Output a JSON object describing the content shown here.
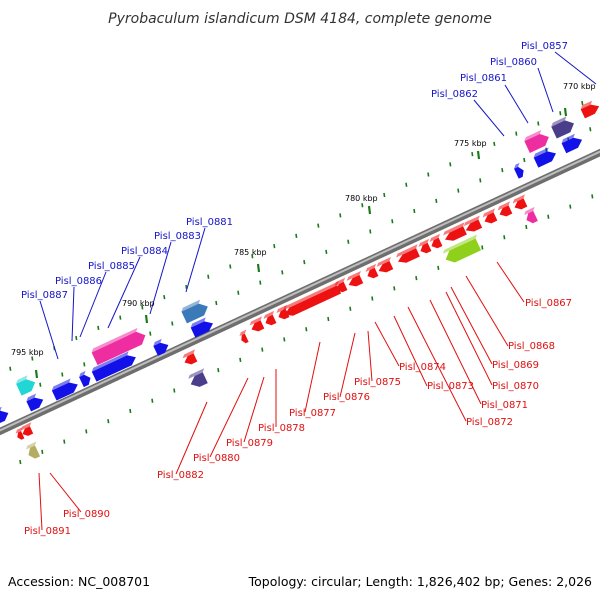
{
  "title": "Pyrobaculum islandicum DSM 4184, complete genome",
  "footer": {
    "accession": "Accession: NC_008701",
    "summary": "Topology: circular; Length: 1,826,402 bp; Genes: 2,026"
  },
  "colors": {
    "upper_strand_label": "#1414c8",
    "lower_strand_label": "#e01010",
    "backbone": "#8a8a8a",
    "tick": "#1a7a1a"
  },
  "scale_ticks": [
    {
      "label": "770 kbp"
    },
    {
      "label": "775 kbp"
    },
    {
      "label": "780 kbp"
    },
    {
      "label": "785 kbp"
    },
    {
      "label": "790 kbp"
    },
    {
      "label": "795 kbp"
    }
  ],
  "gene_labels_upper": [
    {
      "label": "Pisl_0857"
    },
    {
      "label": "Pisl_0860"
    },
    {
      "label": "Pisl_0861"
    },
    {
      "label": "Pisl_0862"
    },
    {
      "label": "Pisl_0881"
    },
    {
      "label": "Pisl_0883"
    },
    {
      "label": "Pisl_0884"
    },
    {
      "label": "Pisl_0885"
    },
    {
      "label": "Pisl_0886"
    },
    {
      "label": "Pisl_0887"
    }
  ],
  "gene_labels_lower": [
    {
      "label": "Pisl_0867"
    },
    {
      "label": "Pisl_0868"
    },
    {
      "label": "Pisl_0869"
    },
    {
      "label": "Pisl_0870"
    },
    {
      "label": "Pisl_0871"
    },
    {
      "label": "Pisl_0872"
    },
    {
      "label": "Pisl_0873"
    },
    {
      "label": "Pisl_0874"
    },
    {
      "label": "Pisl_0875"
    },
    {
      "label": "Pisl_0876"
    },
    {
      "label": "Pisl_0877"
    },
    {
      "label": "Pisl_0878"
    },
    {
      "label": "Pisl_0879"
    },
    {
      "label": "Pisl_0880"
    },
    {
      "label": "Pisl_0882"
    },
    {
      "label": "Pisl_0890"
    },
    {
      "label": "Pisl_0891"
    }
  ]
}
